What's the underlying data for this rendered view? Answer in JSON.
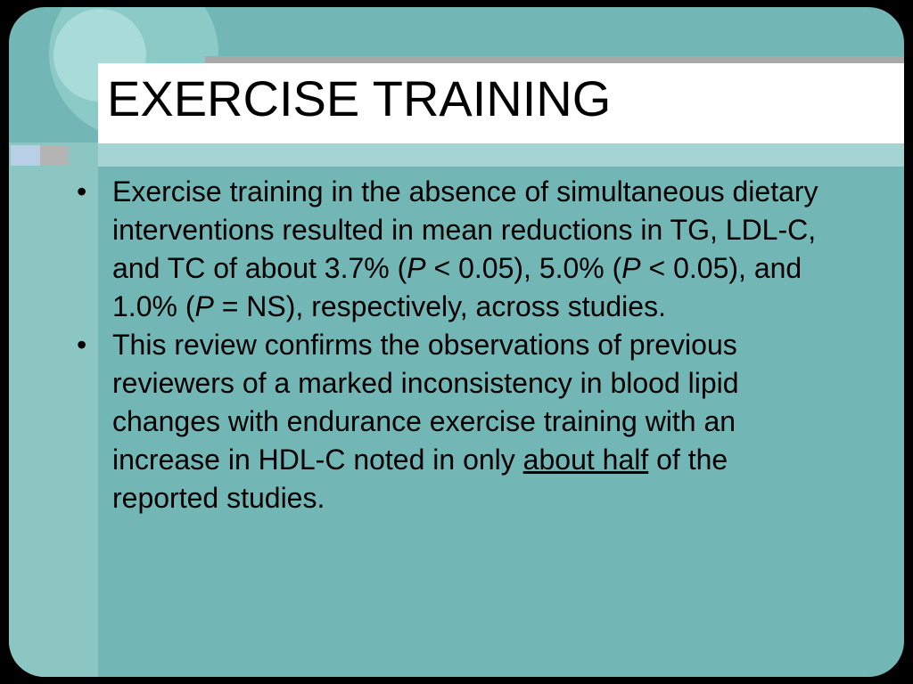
{
  "slide": {
    "title": "EXERCISE TRAINING",
    "bullets": [
      [
        "Exercise training in the absence of simultaneous dietary interventions resulted in mean reductions in TG, LDL-C, and TC of about 3.7% (",
        "P",
        " < 0.05), 5.0% (",
        "P",
        " < 0.05), and 1.0% (",
        "P",
        " = NS), respectively, across studies."
      ],
      [
        "This review confirms the observations of previous reviewers of a marked inconsistency in blood lipid changes with endurance exercise training with an increase in HDL-C noted in only ",
        "about half",
        " of the reported studies."
      ]
    ]
  }
}
